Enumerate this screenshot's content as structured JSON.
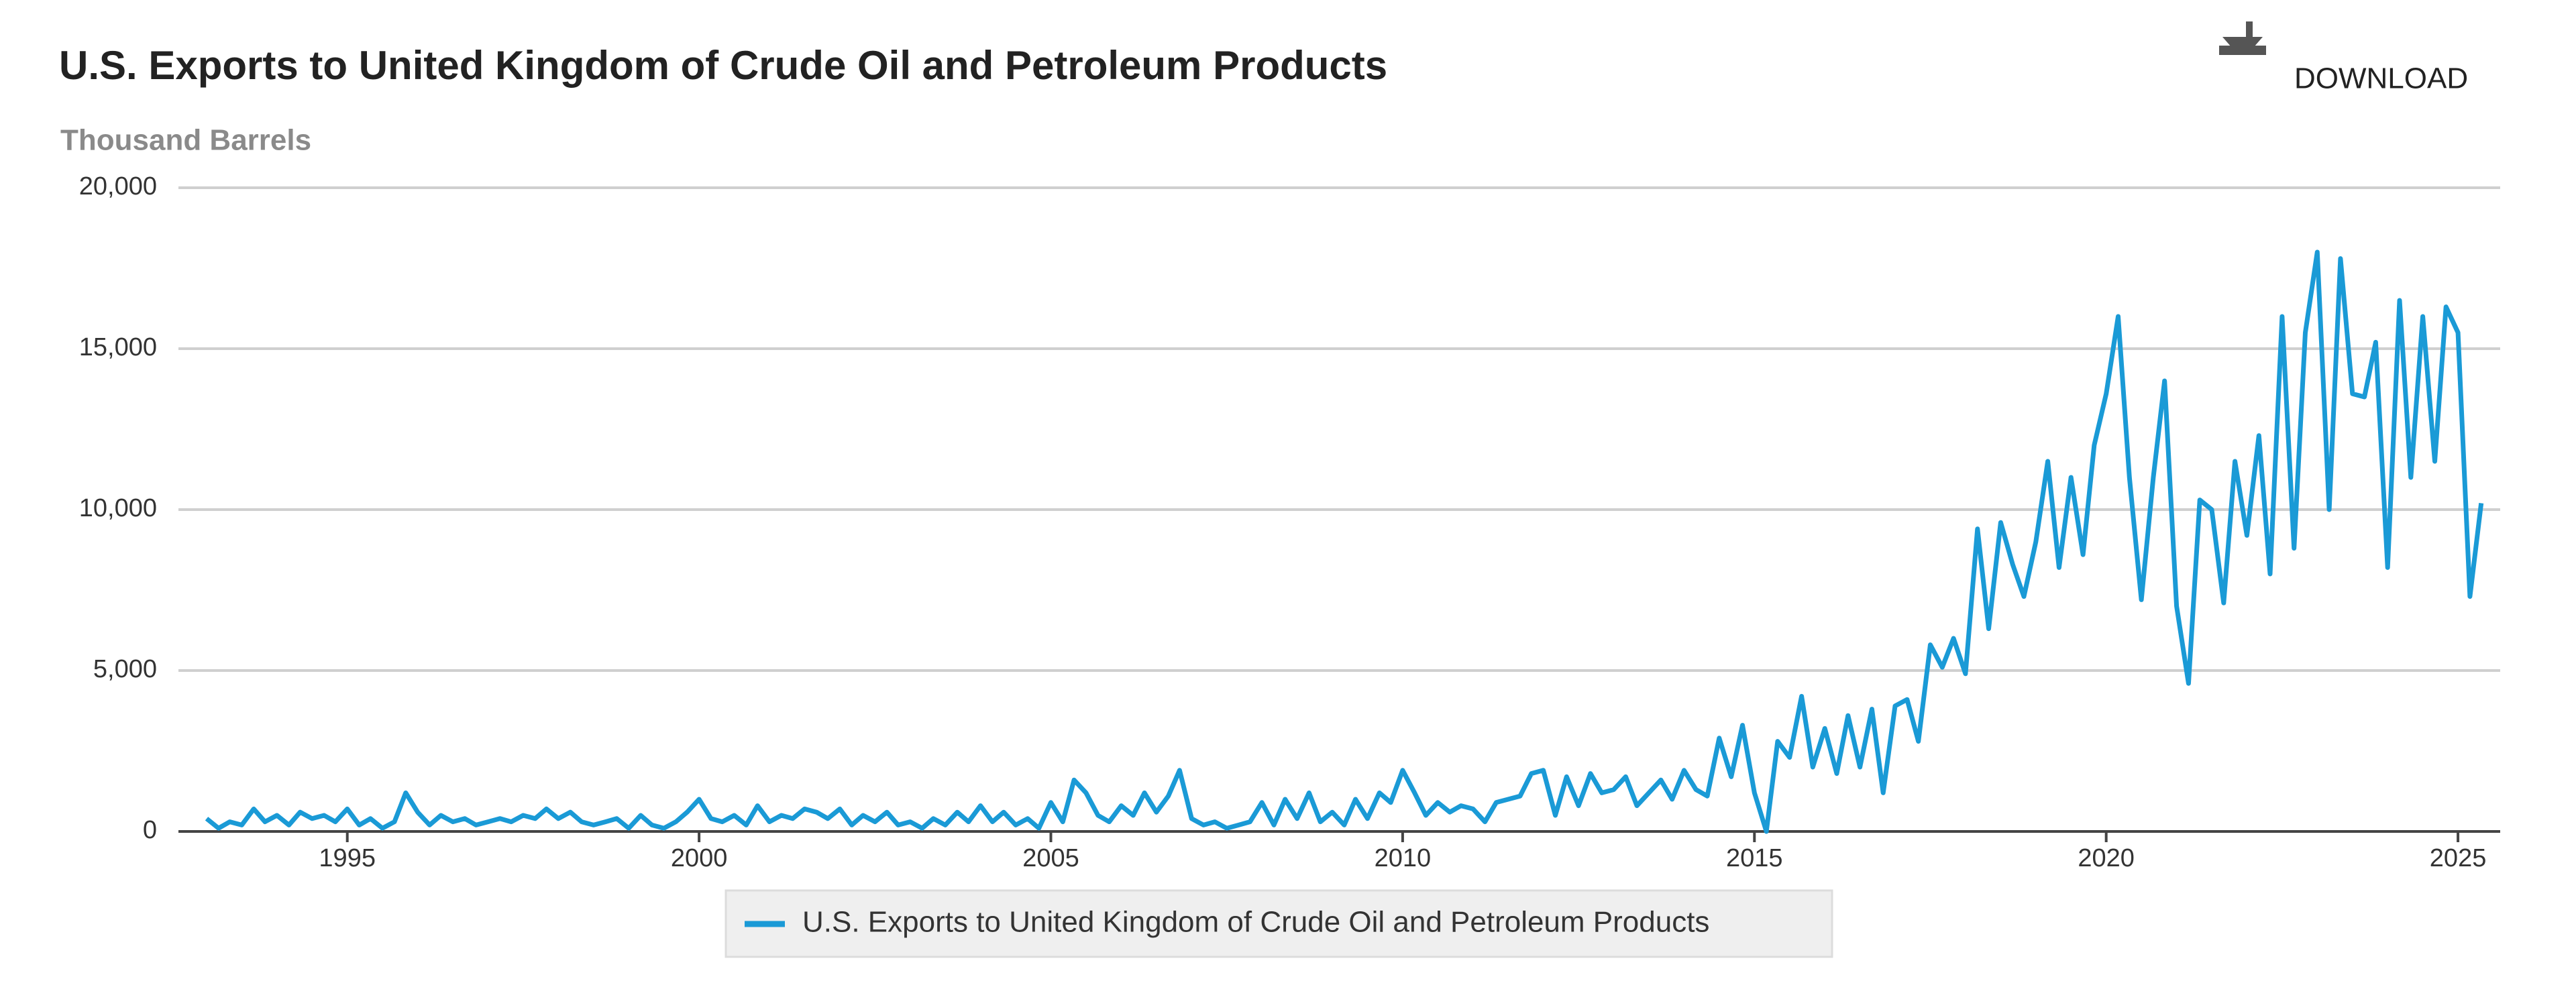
{
  "download_label": "DOWNLOAD",
  "chart_data": {
    "type": "line",
    "title": "U.S. Exports to United Kingdom of Crude Oil and Petroleum Products",
    "y_label": "Thousand Barrels",
    "xlim": [
      1992.6,
      2025.6
    ],
    "xticks": [
      1995,
      2000,
      2005,
      2010,
      2015,
      2020,
      2025
    ],
    "ylim": [
      0,
      20000
    ],
    "yticks": [
      {
        "value": 0,
        "label": "0"
      },
      {
        "value": 5000,
        "label": "5,000"
      },
      {
        "value": 10000,
        "label": "10,000"
      },
      {
        "value": 15000,
        "label": "15,000"
      },
      {
        "value": 20000,
        "label": "20,000"
      }
    ],
    "grid": true,
    "legend": "bottom",
    "x": [
      1993,
      1993.17,
      1993.33,
      1993.5,
      1993.67,
      1993.83,
      1994,
      1994.17,
      1994.33,
      1994.5,
      1994.67,
      1994.83,
      1995,
      1995.17,
      1995.33,
      1995.5,
      1995.67,
      1995.83,
      1996,
      1996.17,
      1996.33,
      1996.5,
      1996.67,
      1996.83,
      1997,
      1997.17,
      1997.33,
      1997.5,
      1997.67,
      1997.83,
      1998,
      1998.17,
      1998.33,
      1998.5,
      1998.67,
      1998.83,
      1999,
      1999.17,
      1999.33,
      1999.5,
      1999.67,
      1999.83,
      2000,
      2000.17,
      2000.33,
      2000.5,
      2000.67,
      2000.83,
      2001,
      2001.17,
      2001.33,
      2001.5,
      2001.67,
      2001.83,
      2002,
      2002.17,
      2002.33,
      2002.5,
      2002.67,
      2002.83,
      2003,
      2003.17,
      2003.33,
      2003.5,
      2003.67,
      2003.83,
      2004,
      2004.17,
      2004.33,
      2004.5,
      2004.67,
      2004.83,
      2005,
      2005.17,
      2005.33,
      2005.5,
      2005.67,
      2005.83,
      2006,
      2006.17,
      2006.33,
      2006.5,
      2006.67,
      2006.83,
      2007,
      2007.17,
      2007.33,
      2007.5,
      2007.67,
      2007.83,
      2008,
      2008.17,
      2008.33,
      2008.5,
      2008.67,
      2008.83,
      2009,
      2009.17,
      2009.33,
      2009.5,
      2009.67,
      2009.83,
      2010,
      2010.17,
      2010.33,
      2010.5,
      2010.67,
      2010.83,
      2011,
      2011.17,
      2011.33,
      2011.5,
      2011.67,
      2011.83,
      2012,
      2012.17,
      2012.33,
      2012.5,
      2012.67,
      2012.83,
      2013,
      2013.17,
      2013.33,
      2013.5,
      2013.67,
      2013.83,
      2014,
      2014.17,
      2014.33,
      2014.5,
      2014.67,
      2014.83,
      2015,
      2015.17,
      2015.33,
      2015.5,
      2015.67,
      2015.83,
      2016,
      2016.17,
      2016.33,
      2016.5,
      2016.67,
      2016.83,
      2017,
      2017.17,
      2017.33,
      2017.5,
      2017.67,
      2017.83,
      2018,
      2018.17,
      2018.33,
      2018.5,
      2018.67,
      2018.83,
      2019,
      2019.17,
      2019.33,
      2019.5,
      2019.67,
      2019.83,
      2020,
      2020.17,
      2020.33,
      2020.5,
      2020.67,
      2020.83,
      2021,
      2021.17,
      2021.33,
      2021.5,
      2021.67,
      2021.83,
      2022,
      2022.17,
      2022.33,
      2022.5,
      2022.67,
      2022.83,
      2023,
      2023.17,
      2023.33,
      2023.5,
      2023.67,
      2023.83,
      2024,
      2024.17,
      2024.33,
      2024.5,
      2024.67,
      2024.83,
      2025,
      2025.17,
      2025.33
    ],
    "series": [
      {
        "name": "U.S. Exports to United Kingdom of Crude Oil and Petroleum Products",
        "color": "#1a9ad6",
        "values": [
          400,
          100,
          300,
          200,
          700,
          300,
          500,
          200,
          600,
          400,
          500,
          300,
          700,
          200,
          400,
          100,
          300,
          1200,
          600,
          200,
          500,
          300,
          400,
          200,
          300,
          400,
          300,
          500,
          400,
          700,
          400,
          600,
          300,
          200,
          300,
          400,
          100,
          500,
          200,
          100,
          300,
          600,
          1000,
          400,
          300,
          500,
          200,
          800,
          300,
          500,
          400,
          700,
          600,
          400,
          700,
          200,
          500,
          300,
          600,
          200,
          300,
          100,
          400,
          200,
          600,
          300,
          800,
          300,
          600,
          200,
          400,
          100,
          900,
          300,
          1600,
          1200,
          500,
          300,
          800,
          500,
          1200,
          600,
          1100,
          1900,
          400,
          200,
          300,
          100,
          200,
          300,
          900,
          200,
          1000,
          400,
          1200,
          300,
          600,
          200,
          1000,
          400,
          1200,
          900,
          1900,
          1200,
          500,
          900,
          600,
          800,
          700,
          300,
          900,
          1000,
          1100,
          1800,
          1900,
          500,
          1700,
          800,
          1800,
          1200,
          1300,
          1700,
          800,
          1200,
          1600,
          1000,
          1900,
          1300,
          1100,
          2900,
          1700,
          3300,
          1200,
          0,
          2800,
          2300,
          4200,
          2000,
          3200,
          1800,
          3600,
          2000,
          3800,
          1200,
          3900,
          4100,
          2800,
          5800,
          5100,
          6000,
          4900,
          9400,
          6300,
          9600,
          8300,
          7300,
          9000,
          11500,
          8200,
          11000,
          8600,
          12000,
          13600,
          16000,
          11000,
          7200,
          11000,
          14000,
          7000,
          4600,
          10300,
          10000,
          7100,
          11500,
          9200,
          12300,
          8000,
          16000,
          8800,
          15500,
          18000,
          10000,
          17800,
          13600,
          13500,
          15200,
          8200,
          16500,
          11000,
          16000,
          11500,
          16300,
          15500,
          7300,
          10200
        ]
      }
    ]
  }
}
